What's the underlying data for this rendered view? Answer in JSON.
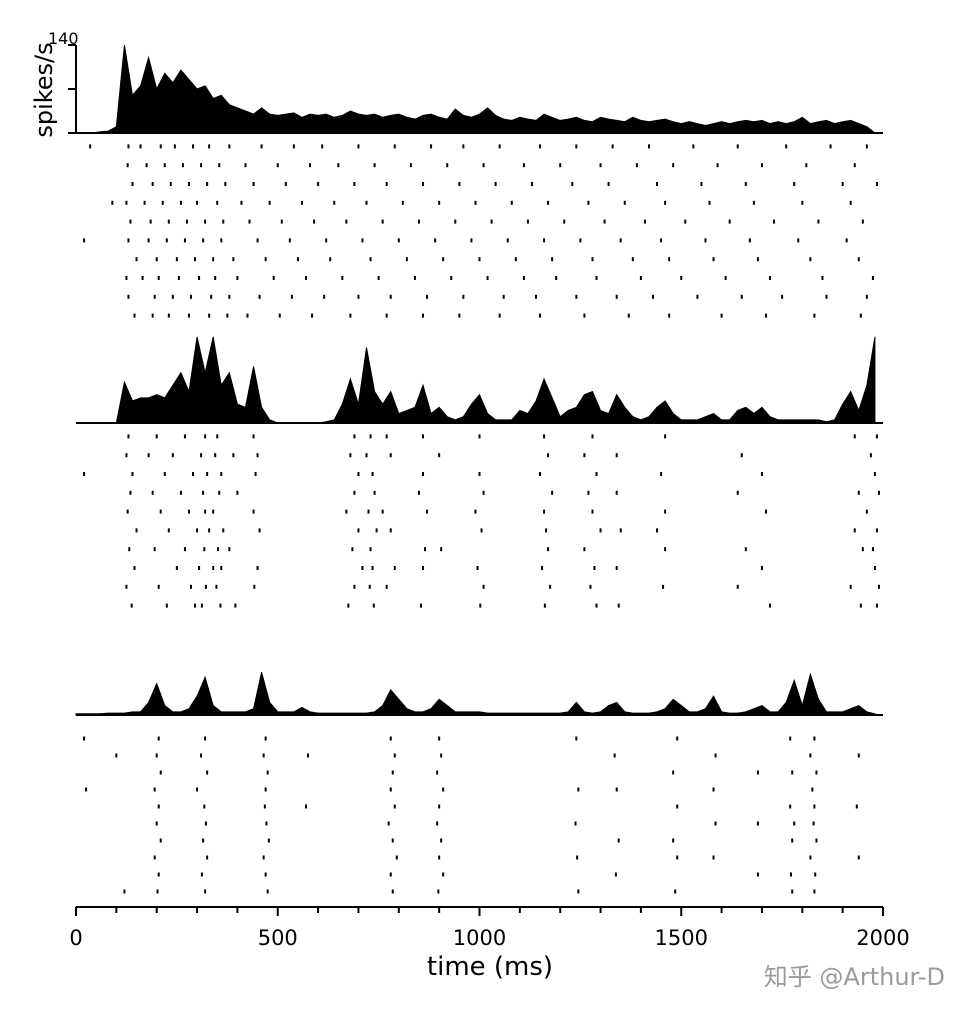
{
  "chart_data": {
    "type": "area",
    "xlabel": "time  (ms)",
    "ylabel": "spikes/s",
    "watermark": "知乎 @Arthur-D",
    "xlim": [
      0,
      2000
    ],
    "xticks": [
      0,
      500,
      1000,
      1500,
      2000
    ],
    "xminorticks": [
      100,
      200,
      300,
      400,
      600,
      700,
      800,
      900,
      1100,
      1200,
      1300,
      1400,
      1600,
      1700,
      1800,
      1900
    ],
    "ylim": [
      0,
      140
    ],
    "yticks": [
      {
        "value": 0,
        "label": null
      },
      {
        "value": 70,
        "label": null
      },
      140
    ],
    "x": [
      0,
      20,
      40,
      60,
      80,
      100,
      120,
      140,
      160,
      180,
      200,
      220,
      240,
      260,
      280,
      300,
      320,
      340,
      360,
      380,
      400,
      420,
      440,
      460,
      480,
      500,
      520,
      540,
      560,
      580,
      600,
      620,
      640,
      660,
      680,
      700,
      720,
      740,
      760,
      780,
      800,
      820,
      840,
      860,
      880,
      900,
      920,
      940,
      960,
      980,
      1000,
      1020,
      1040,
      1060,
      1080,
      1100,
      1120,
      1140,
      1160,
      1180,
      1200,
      1220,
      1240,
      1260,
      1280,
      1300,
      1320,
      1340,
      1360,
      1380,
      1400,
      1420,
      1440,
      1460,
      1480,
      1500,
      1520,
      1540,
      1560,
      1580,
      1600,
      1620,
      1640,
      1660,
      1680,
      1700,
      1720,
      1740,
      1760,
      1780,
      1800,
      1820,
      1840,
      1860,
      1880,
      1900,
      1920,
      1940,
      1960,
      1980
    ],
    "series": [
      {
        "color": "#000000",
        "values": [
          0,
          0,
          0,
          2,
          3,
          10,
          140,
          60,
          75,
          120,
          70,
          95,
          80,
          100,
          85,
          70,
          75,
          55,
          60,
          45,
          40,
          35,
          30,
          40,
          30,
          28,
          30,
          32,
          25,
          30,
          28,
          30,
          25,
          28,
          35,
          30,
          28,
          30,
          25,
          28,
          30,
          25,
          22,
          28,
          30,
          25,
          22,
          38,
          28,
          25,
          30,
          40,
          28,
          22,
          20,
          25,
          22,
          20,
          30,
          25,
          20,
          22,
          25,
          20,
          18,
          25,
          22,
          20,
          18,
          25,
          20,
          18,
          20,
          22,
          18,
          15,
          18,
          15,
          12,
          15,
          18,
          15,
          18,
          20,
          18,
          20,
          15,
          18,
          15,
          18,
          25,
          15,
          18,
          20,
          15,
          18,
          20,
          15,
          10,
          0
        ],
        "raster": [
          [
            35,
            130,
            160,
            210,
            245,
            290,
            330,
            380,
            460,
            540,
            610,
            700,
            790,
            880,
            960,
            1050,
            1150,
            1240,
            1330,
            1420,
            1530,
            1640,
            1760,
            1870,
            1960
          ],
          [
            128,
            175,
            220,
            265,
            310,
            355,
            420,
            500,
            580,
            650,
            740,
            830,
            920,
            1010,
            1110,
            1200,
            1300,
            1390,
            1480,
            1590,
            1700,
            1810,
            1930
          ],
          [
            140,
            190,
            235,
            280,
            325,
            370,
            440,
            520,
            600,
            690,
            770,
            860,
            950,
            1040,
            1130,
            1230,
            1320,
            1440,
            1550,
            1660,
            1780,
            1900,
            1985
          ],
          [
            90,
            125,
            170,
            215,
            260,
            300,
            350,
            410,
            480,
            560,
            640,
            720,
            810,
            900,
            990,
            1080,
            1170,
            1270,
            1360,
            1460,
            1570,
            1680,
            1800,
            1920
          ],
          [
            135,
            185,
            230,
            275,
            320,
            365,
            430,
            510,
            590,
            670,
            760,
            850,
            940,
            1030,
            1120,
            1210,
            1310,
            1410,
            1510,
            1620,
            1730,
            1840,
            1950
          ],
          [
            20,
            130,
            180,
            225,
            270,
            315,
            360,
            450,
            530,
            620,
            710,
            800,
            890,
            980,
            1070,
            1160,
            1250,
            1350,
            1450,
            1560,
            1670,
            1790,
            1910
          ],
          [
            150,
            200,
            250,
            295,
            340,
            390,
            470,
            550,
            630,
            730,
            820,
            910,
            1000,
            1090,
            1180,
            1280,
            1380,
            1470,
            1580,
            1690,
            1820,
            1940
          ],
          [
            125,
            165,
            205,
            255,
            305,
            345,
            400,
            490,
            570,
            660,
            750,
            840,
            930,
            1020,
            1110,
            1190,
            1290,
            1400,
            1500,
            1610,
            1720,
            1850,
            1975
          ],
          [
            130,
            195,
            240,
            285,
            335,
            380,
            455,
            535,
            615,
            700,
            780,
            870,
            960,
            1060,
            1140,
            1240,
            1340,
            1430,
            1540,
            1650,
            1750,
            1860,
            1960
          ],
          [
            145,
            190,
            230,
            280,
            330,
            375,
            425,
            505,
            585,
            680,
            770,
            860,
            950,
            1050,
            1150,
            1260,
            1370,
            1470,
            1600,
            1710,
            1830,
            1945
          ]
        ]
      },
      {
        "color": "#000000",
        "values": [
          0,
          0,
          0,
          0,
          0,
          0,
          65,
          35,
          40,
          40,
          45,
          40,
          60,
          80,
          50,
          137,
          80,
          137,
          60,
          80,
          30,
          25,
          90,
          25,
          5,
          0,
          0,
          0,
          0,
          0,
          0,
          2,
          5,
          30,
          70,
          30,
          120,
          50,
          30,
          50,
          15,
          20,
          25,
          60,
          15,
          25,
          10,
          5,
          10,
          30,
          45,
          15,
          5,
          5,
          5,
          20,
          15,
          35,
          70,
          40,
          10,
          20,
          25,
          45,
          50,
          20,
          15,
          45,
          25,
          10,
          5,
          10,
          25,
          35,
          15,
          5,
          5,
          5,
          10,
          15,
          5,
          5,
          20,
          25,
          15,
          25,
          10,
          5,
          5,
          5,
          5,
          5,
          5,
          2,
          5,
          30,
          50,
          20,
          60,
          137
        ],
        "raster": [
          [
            130,
            200,
            270,
            320,
            350,
            440,
            690,
            730,
            770,
            860,
            1000,
            1160,
            1280,
            1460,
            1930,
            1985
          ],
          [
            125,
            180,
            240,
            310,
            345,
            390,
            450,
            680,
            720,
            780,
            900,
            1170,
            1260,
            1340,
            1650,
            1970
          ],
          [
            20,
            140,
            220,
            290,
            325,
            360,
            445,
            700,
            735,
            860,
            1000,
            1150,
            1290,
            1450,
            1700,
            1980
          ],
          [
            135,
            190,
            260,
            315,
            355,
            400,
            690,
            740,
            850,
            1010,
            1180,
            1270,
            1340,
            1640,
            1940,
            1990
          ],
          [
            128,
            210,
            280,
            320,
            340,
            440,
            670,
            725,
            760,
            870,
            990,
            1160,
            1280,
            1460,
            1710,
            1960
          ],
          [
            150,
            230,
            300,
            330,
            365,
            455,
            700,
            745,
            780,
            1005,
            1165,
            1300,
            1350,
            1440,
            1930,
            1985
          ],
          [
            132,
            195,
            270,
            318,
            352,
            380,
            685,
            730,
            865,
            905,
            1170,
            1260,
            1460,
            1660,
            1950,
            1975
          ],
          [
            145,
            250,
            305,
            340,
            360,
            450,
            710,
            735,
            790,
            860,
            995,
            1155,
            1285,
            1340,
            1700,
            1980
          ],
          [
            125,
            205,
            285,
            322,
            348,
            442,
            690,
            728,
            770,
            1010,
            1175,
            1275,
            1455,
            1640,
            1920,
            1990
          ],
          [
            138,
            225,
            295,
            312,
            358,
            395,
            675,
            738,
            855,
            1002,
            1162,
            1290,
            1345,
            1720,
            1945,
            1985
          ]
        ]
      },
      {
        "color": "#000000",
        "values": [
          2,
          2,
          2,
          2,
          3,
          3,
          3,
          5,
          5,
          20,
          50,
          15,
          5,
          5,
          10,
          30,
          60,
          15,
          5,
          5,
          5,
          5,
          10,
          68,
          20,
          5,
          5,
          5,
          12,
          5,
          3,
          3,
          3,
          3,
          3,
          3,
          3,
          5,
          15,
          40,
          25,
          10,
          5,
          5,
          10,
          25,
          15,
          5,
          5,
          5,
          5,
          3,
          3,
          3,
          3,
          3,
          3,
          3,
          3,
          3,
          3,
          5,
          20,
          5,
          3,
          5,
          15,
          20,
          5,
          3,
          3,
          3,
          5,
          10,
          25,
          15,
          5,
          5,
          10,
          30,
          5,
          3,
          3,
          5,
          10,
          15,
          5,
          5,
          20,
          55,
          15,
          65,
          25,
          5,
          5,
          5,
          10,
          15,
          5,
          2
        ],
        "raster": [
          [
            20,
            205,
            320,
            470,
            780,
            900,
            1240,
            1490,
            1770,
            1830
          ],
          [
            100,
            200,
            310,
            465,
            575,
            790,
            905,
            1335,
            1585,
            1820,
            1940
          ],
          [
            210,
            325,
            475,
            785,
            895,
            1480,
            1690,
            1775,
            1835
          ],
          [
            25,
            195,
            300,
            470,
            780,
            910,
            1245,
            1340,
            1580,
            1825
          ],
          [
            205,
            318,
            468,
            570,
            790,
            900,
            1490,
            1770,
            1830,
            1935
          ],
          [
            200,
            322,
            472,
            775,
            895,
            1238,
            1585,
            1690,
            1780,
            1828
          ],
          [
            210,
            315,
            478,
            785,
            905,
            1345,
            1480,
            1775,
            1835
          ],
          [
            195,
            325,
            465,
            795,
            900,
            1242,
            1490,
            1580,
            1820,
            1940
          ],
          [
            205,
            312,
            470,
            780,
            910,
            1338,
            1690,
            1772,
            1832
          ],
          [
            120,
            202,
            320,
            475,
            785,
            898,
            1245,
            1485,
            1775,
            1830
          ]
        ]
      }
    ]
  }
}
